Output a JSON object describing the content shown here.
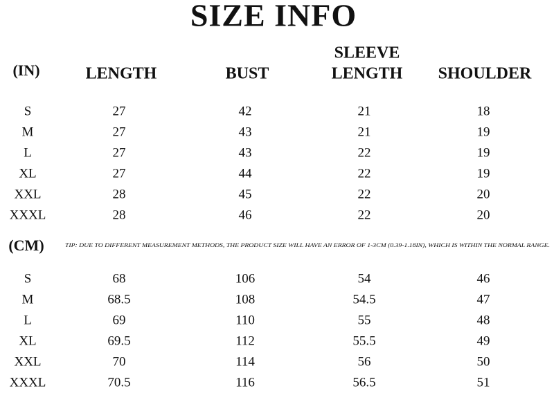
{
  "title": "SIZE INFO",
  "inch_table": {
    "unit": "(IN)",
    "columns": [
      [
        "LENGTH"
      ],
      [
        "BUST"
      ],
      [
        "SLEEVE",
        "LENGTH"
      ],
      [
        "SHOULDER"
      ]
    ],
    "rows": [
      [
        "S",
        "27",
        "42",
        "21",
        "18"
      ],
      [
        "M",
        "27",
        "43",
        "21",
        "19"
      ],
      [
        "L",
        "27",
        "43",
        "22",
        "19"
      ],
      [
        "XL",
        "27",
        "44",
        "22",
        "19"
      ],
      [
        "XXL",
        "28",
        "45",
        "22",
        "20"
      ],
      [
        "XXXL",
        "28",
        "46",
        "22",
        "20"
      ]
    ]
  },
  "tip": "TIP: DUE TO DIFFERENT MEASUREMENT METHODS, THE PRODUCT SIZE WILL HAVE AN ERROR OF 1-3CM (0.39-1.18IN), WHICH IS WITHIN THE NORMAL RANGE.",
  "cm_table": {
    "unit": "(CM)",
    "rows": [
      [
        "S",
        "68",
        "106",
        "54",
        "46"
      ],
      [
        "M",
        "68.5",
        "108",
        "54.5",
        "47"
      ],
      [
        "L",
        "69",
        "110",
        "55",
        "48"
      ],
      [
        "XL",
        "69.5",
        "112",
        "55.5",
        "49"
      ],
      [
        "XXL",
        "70",
        "114",
        "56",
        "50"
      ],
      [
        "XXXL",
        "70.5",
        "116",
        "56.5",
        "51"
      ]
    ]
  }
}
